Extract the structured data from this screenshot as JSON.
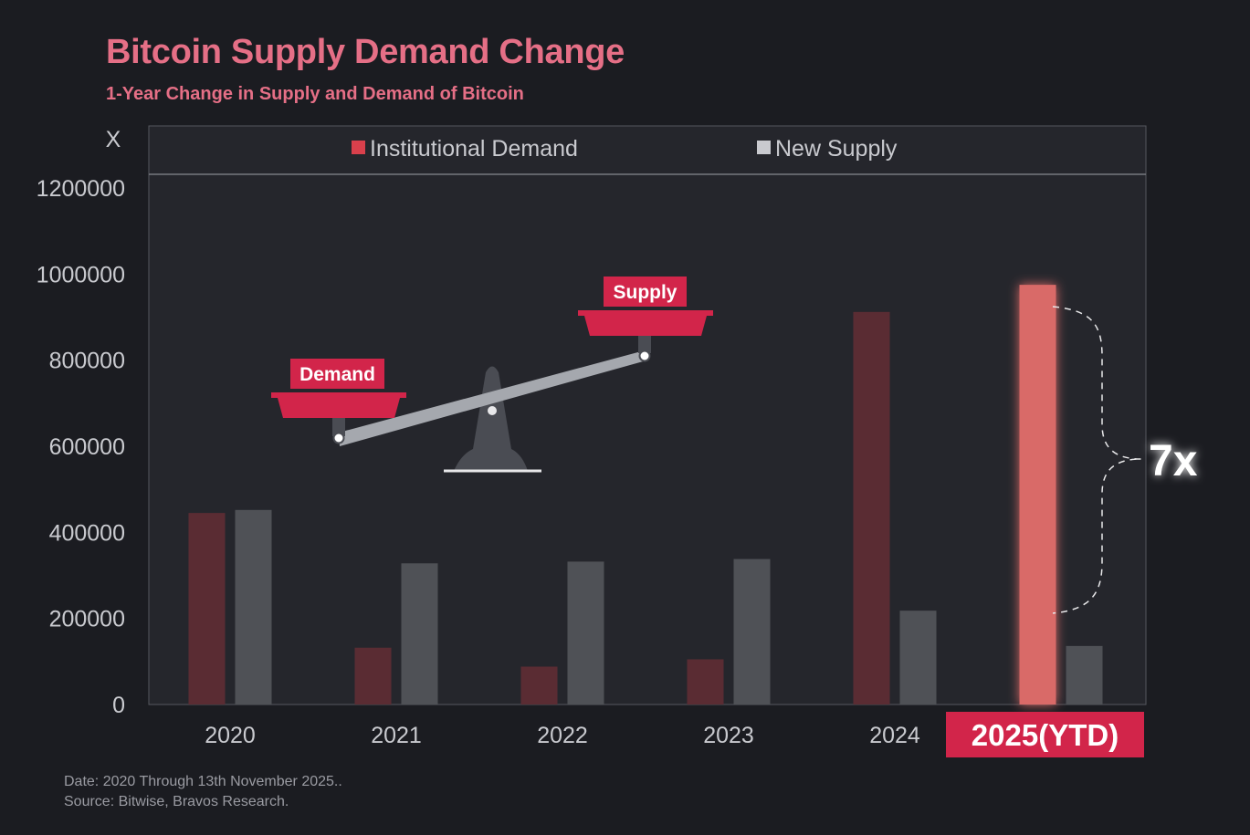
{
  "chart_data": {
    "type": "bar",
    "title": "Bitcoin Supply Demand Change",
    "subtitle": "1-Year Change in Supply and Demand of Bitcoin",
    "ylabel": "X",
    "xlabel": "",
    "ylim": [
      0,
      1200000
    ],
    "yticks": [
      "0",
      "200000",
      "400000",
      "600000",
      "800000",
      "1000000",
      "1200000"
    ],
    "categories": [
      "2020",
      "2021",
      "2022",
      "2023",
      "2024",
      "2025(YTD)"
    ],
    "series": [
      {
        "name": "Institutional Demand",
        "values": [
          445000,
          132000,
          88000,
          105000,
          912000,
          975000
        ]
      },
      {
        "name": "New Supply",
        "values": [
          452000,
          328000,
          332000,
          338000,
          218000,
          136000
        ]
      }
    ],
    "legend_position": "top",
    "grid": false,
    "annotations": {
      "multiplier": "7x",
      "scale_demand": "Demand",
      "scale_supply": "Supply"
    },
    "colors": {
      "demand": "#5a2c33",
      "demand_highlight": "#d96a67",
      "supply": "#4f5156",
      "legend_demand": "#d9404c",
      "legend_supply": "#c9cacf",
      "badge": "#d2254a"
    }
  },
  "footer": {
    "date_note": "Date: 2020 Through 13th November 2025..",
    "source_note": "Source: Bitwise, Bravos Research."
  }
}
